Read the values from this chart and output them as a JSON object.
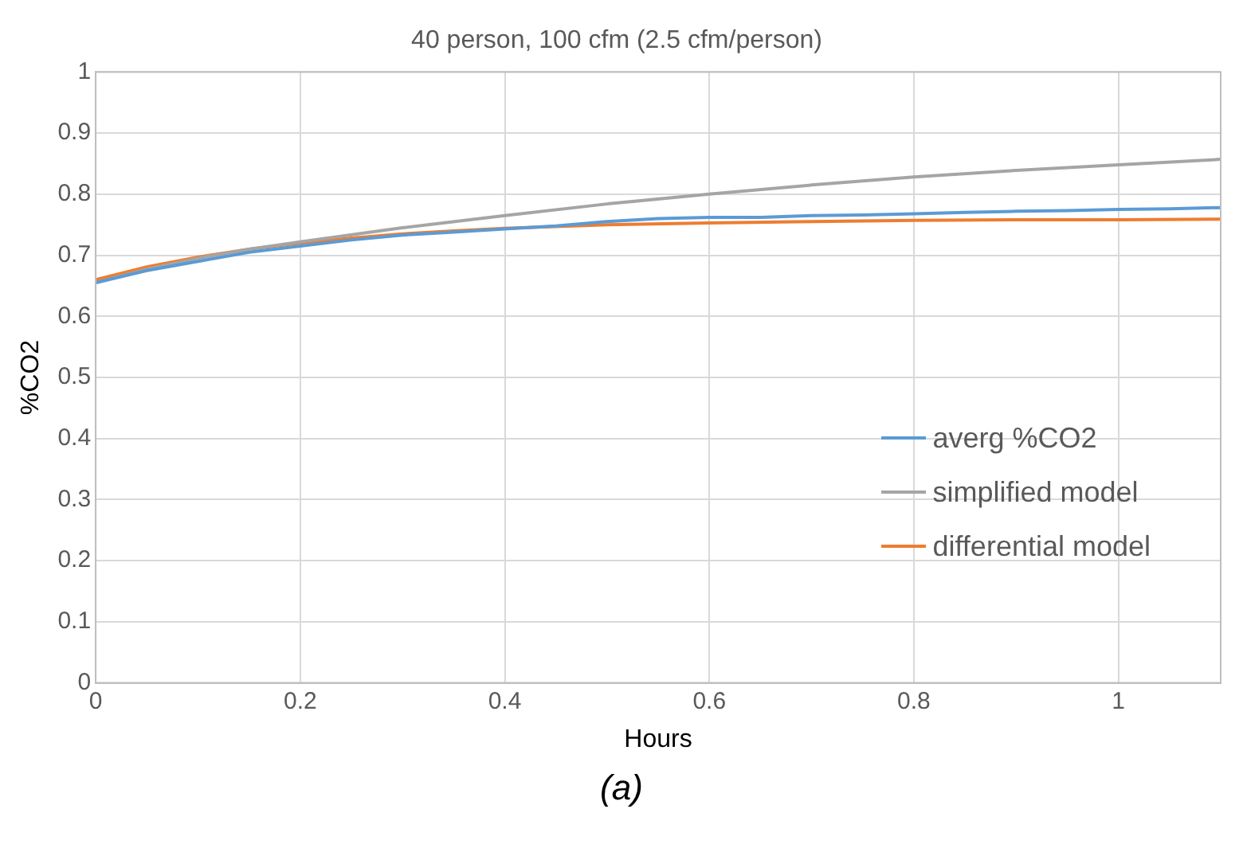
{
  "chart_data": {
    "type": "line",
    "title": "40 person, 100 cfm (2.5 cfm/person)",
    "xlabel": "Hours",
    "ylabel": "%CO2",
    "annotations": [
      "(a)"
    ],
    "xlim": [
      0,
      1.1
    ],
    "xticks": [
      0,
      0.2,
      0.4,
      0.6,
      0.8,
      1
    ],
    "ylim": [
      0,
      1
    ],
    "yticks": [
      0,
      0.1,
      0.2,
      0.3,
      0.4,
      0.5,
      0.6,
      0.7,
      0.8,
      0.9,
      1
    ],
    "grid": true,
    "legend": "right",
    "marker": "none",
    "series": [
      {
        "name": "averg %CO2",
        "color": "#5b9bd5",
        "x": [
          0,
          0.05,
          0.1,
          0.15,
          0.2,
          0.25,
          0.3,
          0.35,
          0.4,
          0.45,
          0.5,
          0.55,
          0.6,
          0.65,
          0.7,
          0.75,
          0.8,
          0.85,
          0.9,
          0.95,
          1,
          1.05,
          1.1
        ],
        "values": [
          0.655,
          0.675,
          0.69,
          0.705,
          0.715,
          0.725,
          0.733,
          0.738,
          0.743,
          0.748,
          0.755,
          0.76,
          0.762,
          0.762,
          0.765,
          0.766,
          0.768,
          0.77,
          0.772,
          0.773,
          0.775,
          0.776,
          0.778
        ]
      },
      {
        "name": "simplified model",
        "color": "#a5a5a5",
        "x": [
          0,
          0.05,
          0.1,
          0.15,
          0.2,
          0.3,
          0.4,
          0.5,
          0.6,
          0.7,
          0.8,
          0.9,
          1,
          1.1
        ],
        "values": [
          0.655,
          0.677,
          0.695,
          0.71,
          0.722,
          0.745,
          0.765,
          0.784,
          0.8,
          0.815,
          0.828,
          0.839,
          0.848,
          0.857
        ]
      },
      {
        "name": "differential model",
        "color": "#ed7d31",
        "x": [
          0,
          0.05,
          0.1,
          0.15,
          0.2,
          0.25,
          0.3,
          0.35,
          0.4,
          0.5,
          0.6,
          0.7,
          0.8,
          0.9,
          1,
          1.1
        ],
        "values": [
          0.66,
          0.681,
          0.697,
          0.71,
          0.72,
          0.728,
          0.735,
          0.74,
          0.744,
          0.75,
          0.753,
          0.755,
          0.757,
          0.758,
          0.758,
          0.759
        ]
      }
    ]
  }
}
